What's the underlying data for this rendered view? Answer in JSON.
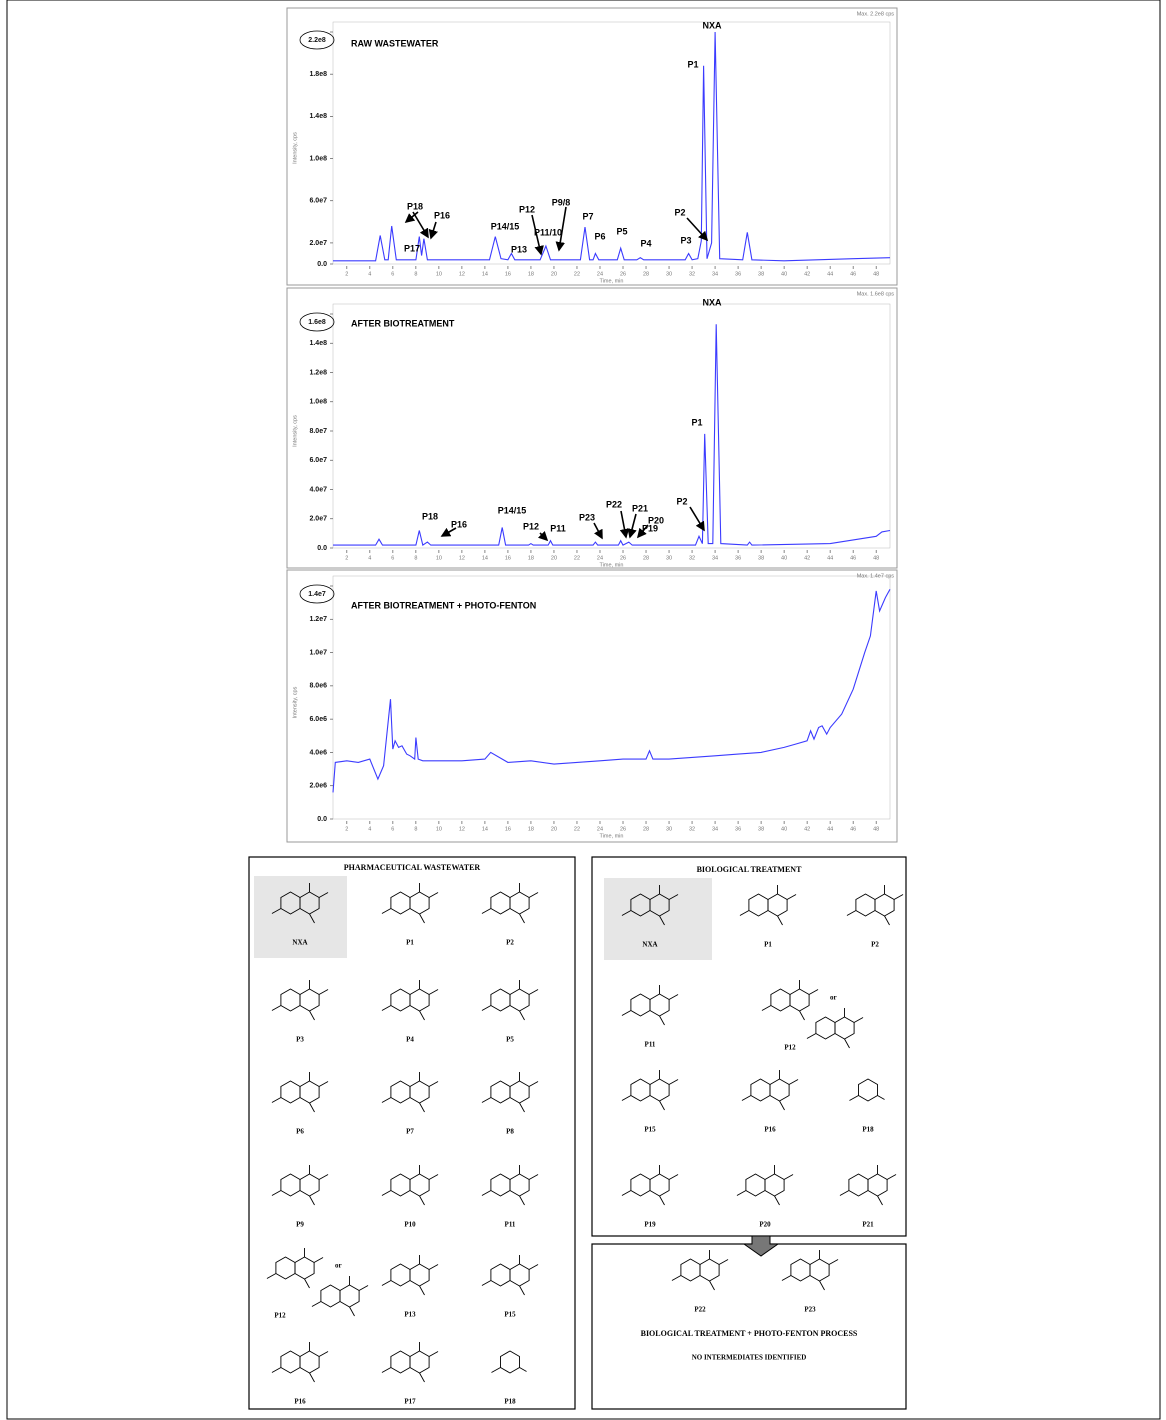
{
  "chromatograms": [
    {
      "title": "RAW WASTEWATER",
      "max_label": "Max. 2.2e8 cps",
      "y_axis_label": "Intensity, cps",
      "x_axis_label": "Time, min",
      "xlim": [
        0.8,
        49.2
      ],
      "ylim": [
        0,
        220000000.0
      ],
      "yticks": [
        {
          "value": 0,
          "label": "0.0"
        },
        {
          "value": 20000000.0,
          "label": "2.0e7"
        },
        {
          "value": 60000000.0,
          "label": "6.0e7"
        },
        {
          "value": 100000000.0,
          "label": "1.0e8"
        },
        {
          "value": 140000000.0,
          "label": "1.4e8"
        },
        {
          "value": 180000000.0,
          "label": "1.8e8"
        },
        {
          "value": 220000000.0,
          "label": "2.2e8"
        }
      ],
      "xticks": [
        2,
        4,
        6,
        8,
        10,
        12,
        14,
        16,
        18,
        20,
        22,
        24,
        26,
        28,
        30,
        32,
        34,
        36,
        38,
        40,
        42,
        44,
        46,
        48
      ],
      "trace": {
        "x": [
          0.8,
          4.5,
          4.9,
          5.3,
          5.6,
          5.9,
          6.3,
          8.0,
          8.3,
          8.5,
          8.7,
          9.0,
          14.4,
          14.9,
          15.4,
          16.0,
          16.3,
          16.6,
          18.8,
          19.3,
          19.7,
          22.3,
          22.7,
          23.1,
          23.4,
          23.6,
          23.9,
          25.5,
          25.8,
          26.1,
          27.2,
          27.5,
          27.8,
          31.4,
          31.7,
          32.0,
          32.5,
          32.8,
          33.0,
          33.3,
          33.7,
          34.0,
          34.4,
          36.4,
          36.8,
          37.2,
          40,
          46,
          49.2
        ],
        "y": [
          3000000.0,
          3000000.0,
          27000000.0,
          4000000.0,
          4000000.0,
          36000000.0,
          4000000.0,
          4000000.0,
          26000000.0,
          8000000.0,
          24000000.0,
          4000000.0,
          4000000.0,
          26000000.0,
          5000000.0,
          4000000.0,
          10000000.0,
          4000000.0,
          4000000.0,
          17000000.0,
          4000000.0,
          4000000.0,
          35000000.0,
          4000000.0,
          4000000.0,
          10000000.0,
          4000000.0,
          4000000.0,
          15000000.0,
          4000000.0,
          4000000.0,
          6000000.0,
          4000000.0,
          4000000.0,
          10000000.0,
          4000000.0,
          5000000.0,
          22000000.0,
          188000000.0,
          5000000.0,
          20000000.0,
          220000000.0,
          5000000.0,
          4000000.0,
          30000000.0,
          4000000.0,
          3000000.0,
          5000000.0,
          6000000.0
        ]
      },
      "peaks": [
        "NXA",
        "P1",
        "P2",
        "P3",
        "P4",
        "P5",
        "P6",
        "P7",
        "P9/8",
        "P11/10",
        "P12",
        "P13",
        "P14/15",
        "P16",
        "P17",
        "P18"
      ]
    },
    {
      "title": "AFTER BIOTREATMENT",
      "max_label": "Max. 1.6e8 cps",
      "y_axis_label": "Intensity, cps",
      "x_axis_label": "Time, min",
      "xlim": [
        0.8,
        49.2
      ],
      "ylim": [
        0,
        160000000.0
      ],
      "yticks": [
        {
          "value": 0,
          "label": "0.0"
        },
        {
          "value": 20000000.0,
          "label": "2.0e7"
        },
        {
          "value": 40000000.0,
          "label": "4.0e7"
        },
        {
          "value": 60000000.0,
          "label": "6.0e7"
        },
        {
          "value": 80000000.0,
          "label": "8.0e7"
        },
        {
          "value": 100000000.0,
          "label": "1.0e8"
        },
        {
          "value": 120000000.0,
          "label": "1.2e8"
        },
        {
          "value": 140000000.0,
          "label": "1.4e8"
        },
        {
          "value": 160000000.0,
          "label": "1.6e8"
        }
      ],
      "xticks": [
        2,
        4,
        6,
        8,
        10,
        12,
        14,
        16,
        18,
        20,
        22,
        24,
        26,
        28,
        30,
        32,
        34,
        36,
        38,
        40,
        42,
        44,
        46,
        48
      ],
      "trace": {
        "x": [
          0.8,
          4.5,
          4.8,
          5.1,
          8.0,
          8.3,
          8.6,
          9.0,
          9.3,
          15.2,
          15.5,
          15.8,
          17.8,
          18.0,
          18.2,
          19.5,
          19.7,
          19.9,
          23.4,
          23.6,
          23.8,
          25.6,
          25.8,
          26.0,
          26.5,
          26.8,
          32.3,
          32.6,
          32.9,
          33.1,
          33.4,
          33.8,
          34.1,
          34.5,
          36.8,
          37.0,
          37.2,
          44,
          48,
          48.5,
          49.2
        ],
        "y": [
          2000000.0,
          2000000.0,
          6000000.0,
          2000000.0,
          2000000.0,
          12000000.0,
          2000000.0,
          4000000.0,
          2000000.0,
          2000000.0,
          14000000.0,
          2000000.0,
          2000000.0,
          3000000.0,
          2000000.0,
          2000000.0,
          5000000.0,
          2000000.0,
          2000000.0,
          4000000.0,
          2000000.0,
          2000000.0,
          5000000.0,
          2000000.0,
          4000000.0,
          2000000.0,
          2000000.0,
          8000000.0,
          3000000.0,
          78000000.0,
          3000000.0,
          3000000.0,
          153000000.0,
          3000000.0,
          2000000.0,
          4000000.0,
          2000000.0,
          3000000.0,
          8000000.0,
          11000000.0,
          12000000.0
        ]
      },
      "peaks": [
        "NXA",
        "P1",
        "P2",
        "P19",
        "P20",
        "P21",
        "P22",
        "P23",
        "P11",
        "P12",
        "P14/15",
        "P16",
        "P18"
      ]
    },
    {
      "title": "AFTER BIOTREATMENT + PHOTO-FENTON",
      "max_label": "Max. 1.4e7 cps",
      "y_axis_label": "Intensity, cps",
      "x_axis_label": "Time, min",
      "xlim": [
        0.8,
        49.2
      ],
      "ylim": [
        0,
        14000000.0
      ],
      "yticks": [
        {
          "value": 0,
          "label": "0.0"
        },
        {
          "value": 2000000.0,
          "label": "2.0e6"
        },
        {
          "value": 4000000.0,
          "label": "4.0e6"
        },
        {
          "value": 6000000.0,
          "label": "6.0e6"
        },
        {
          "value": 8000000.0,
          "label": "8.0e6"
        },
        {
          "value": 10000000.0,
          "label": "1.0e7"
        },
        {
          "value": 12000000.0,
          "label": "1.2e7"
        },
        {
          "value": 14000000.0,
          "label": "1.4e7"
        }
      ],
      "xticks": [
        2,
        4,
        6,
        8,
        10,
        12,
        14,
        16,
        18,
        20,
        22,
        24,
        26,
        28,
        30,
        32,
        34,
        36,
        38,
        40,
        42,
        44,
        46,
        48
      ],
      "trace": {
        "x": [
          0.8,
          1.0,
          2,
          3,
          4,
          4.7,
          5.2,
          5.8,
          6.0,
          6.2,
          6.5,
          6.8,
          7.2,
          7.5,
          7.9,
          8.0,
          8.2,
          8.6,
          10,
          12,
          14,
          14.5,
          16,
          18,
          20,
          22,
          24,
          26,
          28,
          28.3,
          28.6,
          30,
          32,
          34,
          36,
          38,
          40,
          41,
          42,
          42.3,
          42.6,
          43,
          43.3,
          43.7,
          44,
          45,
          46,
          47,
          47.5,
          48,
          48.3,
          48.8,
          49.2
        ],
        "y": [
          1600000.0,
          3400000.0,
          3500000.0,
          3400000.0,
          3600000.0,
          2400000.0,
          3200000.0,
          7200000.0,
          4200000.0,
          4700000.0,
          4300000.0,
          4400000.0,
          3900000.0,
          3800000.0,
          3600000.0,
          4900000.0,
          3600000.0,
          3500000.0,
          3500000.0,
          3500000.0,
          3600000.0,
          4000000.0,
          3400000.0,
          3500000.0,
          3300000.0,
          3400000.0,
          3500000.0,
          3600000.0,
          3600000.0,
          4100000.0,
          3600000.0,
          3600000.0,
          3700000.0,
          3800000.0,
          3900000.0,
          4000000.0,
          4300000.0,
          4500000.0,
          4700000.0,
          5300000.0,
          4800000.0,
          5500000.0,
          5600000.0,
          5100000.0,
          5500000.0,
          6300000.0,
          7800000.0,
          10000000.0,
          11000000.0,
          13700000.0,
          12500000.0,
          13300000.0,
          13800000.0
        ]
      },
      "peaks": []
    }
  ],
  "structures": {
    "left": {
      "title": "PHARMACEUTICAL WASTEWATER",
      "alternative_label": "or",
      "compounds": [
        "NXA",
        "P1",
        "P2",
        "P3",
        "P4",
        "P5",
        "P6",
        "P7",
        "P8",
        "P9",
        "P10",
        "P11",
        "P12",
        "P13",
        "P15",
        "P16",
        "P17",
        "P18"
      ]
    },
    "right": {
      "title": "BIOLOGICAL TREATMENT",
      "alternative_label": "or",
      "compounds": [
        "NXA",
        "P1",
        "P2",
        "P11",
        "P12",
        "P15",
        "P16",
        "P18",
        "P19",
        "P20",
        "P21",
        "P22",
        "P23"
      ]
    },
    "bottom": {
      "title": "BIOLOGICAL TREATMENT + PHOTO-FENTON PROCESS",
      "subtitle": "NO INTERMEDIATES IDENTIFIED"
    }
  }
}
